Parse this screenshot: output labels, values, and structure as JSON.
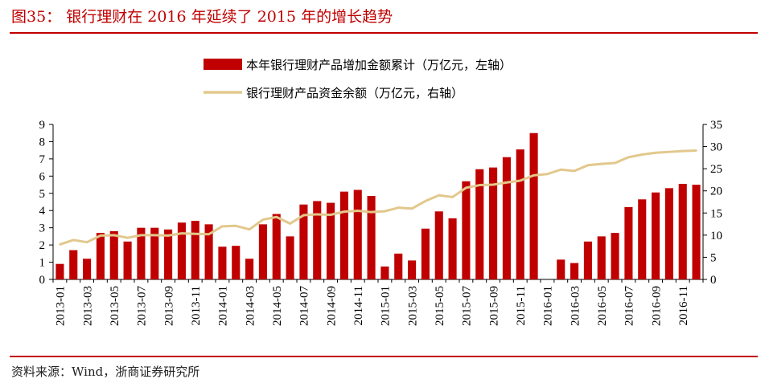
{
  "header": {
    "title": "图35：   银行理财在 2016 年延续了 2015 年的增长趋势"
  },
  "footer": {
    "source": "资料来源：Wind，浙商证券研究所"
  },
  "colors": {
    "accent": "#c00000",
    "bar": "#c00000",
    "line": "#e2c88c",
    "axis": "#000000"
  },
  "chart_data": {
    "type": "bar+line",
    "title": "银行理财在 2016 年延续了 2015 年的增长趋势",
    "x_label_every": 2,
    "categories": [
      "2013-01",
      "2013-02",
      "2013-03",
      "2013-04",
      "2013-05",
      "2013-06",
      "2013-07",
      "2013-08",
      "2013-09",
      "2013-10",
      "2013-11",
      "2013-12",
      "2014-01",
      "2014-02",
      "2014-03",
      "2014-04",
      "2014-05",
      "2014-06",
      "2014-07",
      "2014-08",
      "2014-09",
      "2014-10",
      "2014-11",
      "2014-12",
      "2015-01",
      "2015-02",
      "2015-03",
      "2015-04",
      "2015-05",
      "2015-06",
      "2015-07",
      "2015-08",
      "2015-09",
      "2015-10",
      "2015-11",
      "2015-12",
      "2016-01",
      "2016-02",
      "2016-03",
      "2016-04",
      "2016-05",
      "2016-06",
      "2016-07",
      "2016-08",
      "2016-09",
      "2016-10",
      "2016-11",
      "2016-12"
    ],
    "series": [
      {
        "name": "本年银行理财产品增加金额累计（万亿元，左轴）",
        "type": "bar",
        "axis": "left",
        "values": [
          0.9,
          1.7,
          1.2,
          2.7,
          2.8,
          2.2,
          3.0,
          3.0,
          2.9,
          3.3,
          3.4,
          3.2,
          1.9,
          1.95,
          1.2,
          3.2,
          3.8,
          2.5,
          4.35,
          4.55,
          4.45,
          5.1,
          5.2,
          4.85,
          0.75,
          1.5,
          1.1,
          2.95,
          3.95,
          3.55,
          5.7,
          6.4,
          6.5,
          7.1,
          7.55,
          8.5,
          null,
          1.15,
          0.95,
          2.2,
          2.5,
          2.7,
          4.2,
          4.65,
          5.05,
          5.3,
          5.55,
          5.5
        ]
      },
      {
        "name": "银行理财产品资金余额（万亿元，右轴）",
        "type": "line",
        "axis": "right",
        "values": [
          7.9,
          8.9,
          8.4,
          9.9,
          10.0,
          9.4,
          10.0,
          10.0,
          9.9,
          10.4,
          10.3,
          10.2,
          12.0,
          12.1,
          11.3,
          13.5,
          14.1,
          12.6,
          14.5,
          14.7,
          14.6,
          15.3,
          15.5,
          15.2,
          15.4,
          16.2,
          16.0,
          17.7,
          19.0,
          18.6,
          20.7,
          21.3,
          21.4,
          21.9,
          22.3,
          23.5,
          23.8,
          24.8,
          24.5,
          25.8,
          26.1,
          26.3,
          27.6,
          28.2,
          28.6,
          28.8,
          29.0,
          29.1
        ]
      }
    ],
    "y_left": {
      "min": 0,
      "max": 9,
      "ticks": [
        0,
        1,
        2,
        3,
        4,
        5,
        6,
        7,
        8,
        9
      ]
    },
    "y_right": {
      "min": 0,
      "max": 35,
      "ticks": [
        0,
        5,
        10,
        15,
        20,
        25,
        30,
        35
      ]
    },
    "legend_position": "top-center"
  }
}
